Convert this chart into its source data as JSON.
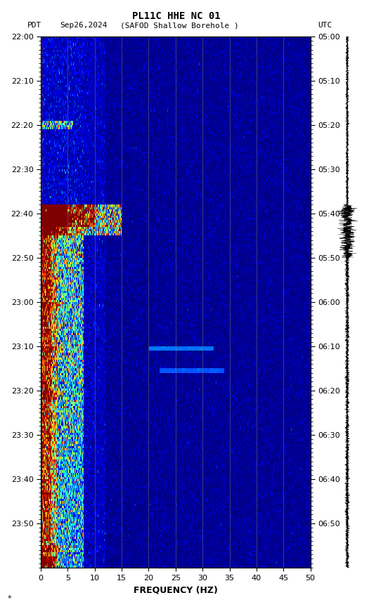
{
  "title_line1": "PL11C HHE NC 01",
  "xlabel": "FREQUENCY (HZ)",
  "freq_min": 0,
  "freq_max": 50,
  "freq_ticks": [
    0,
    5,
    10,
    15,
    20,
    25,
    30,
    35,
    40,
    45,
    50
  ],
  "pdt_ticks": [
    "22:00",
    "22:10",
    "22:20",
    "22:30",
    "22:40",
    "22:50",
    "23:00",
    "23:10",
    "23:20",
    "23:30",
    "23:40",
    "23:50"
  ],
  "utc_ticks": [
    "05:00",
    "05:10",
    "05:20",
    "05:30",
    "05:40",
    "05:50",
    "06:00",
    "06:10",
    "06:20",
    "06:30",
    "06:40",
    "06:50"
  ],
  "vgrid_freqs": [
    5,
    10,
    15,
    20,
    25,
    30,
    35,
    40,
    45
  ],
  "vgrid_color": "#888866",
  "colormap": "jet",
  "num_time_bins": 240,
  "num_freq_bins": 500,
  "pdt_label": "PDT",
  "date_label": "Sep26,2024",
  "station_label": "(SAFOD Shallow Borehole )",
  "utc_label": "UTC"
}
